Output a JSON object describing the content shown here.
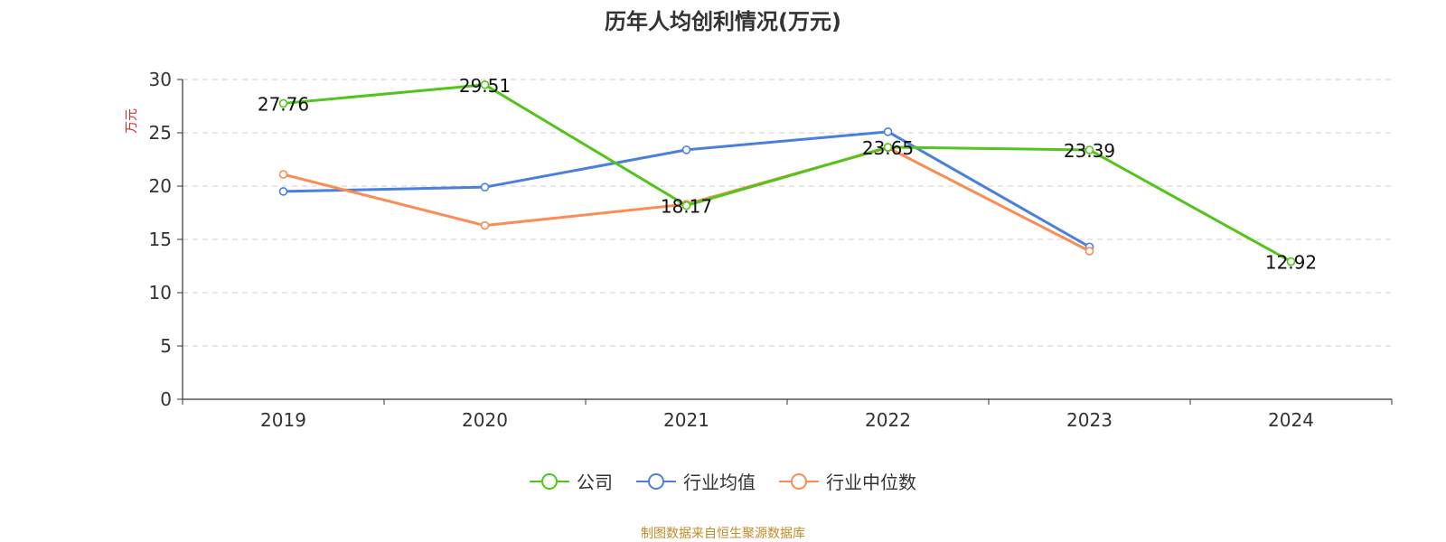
{
  "chart_data": {
    "type": "line",
    "title": "历年人均创利情况(万元)",
    "ylabel": "万元",
    "xlabel": "",
    "categories": [
      "2019",
      "2020",
      "2021",
      "2022",
      "2023",
      "2024"
    ],
    "ylim": [
      0,
      30
    ],
    "yticks": [
      0,
      5,
      10,
      15,
      20,
      25,
      30
    ],
    "grid": true,
    "legend_position": "bottom",
    "series": [
      {
        "name": "公司",
        "color": "#52c41a",
        "values": [
          27.76,
          29.51,
          18.17,
          23.65,
          23.39,
          12.92
        ],
        "labels": [
          "27.76",
          "29.51",
          "18.17",
          "23.65",
          "23.39",
          "12.92"
        ]
      },
      {
        "name": "行业均值",
        "color": "#4a7fdc",
        "values": [
          19.5,
          19.9,
          23.4,
          25.1,
          14.3,
          null
        ]
      },
      {
        "name": "行业中位数",
        "color": "#fa8c54",
        "values": [
          21.1,
          16.3,
          18.3,
          23.6,
          13.9,
          null
        ]
      }
    ]
  },
  "source_note": "制图数据来自恒生聚源数据库"
}
